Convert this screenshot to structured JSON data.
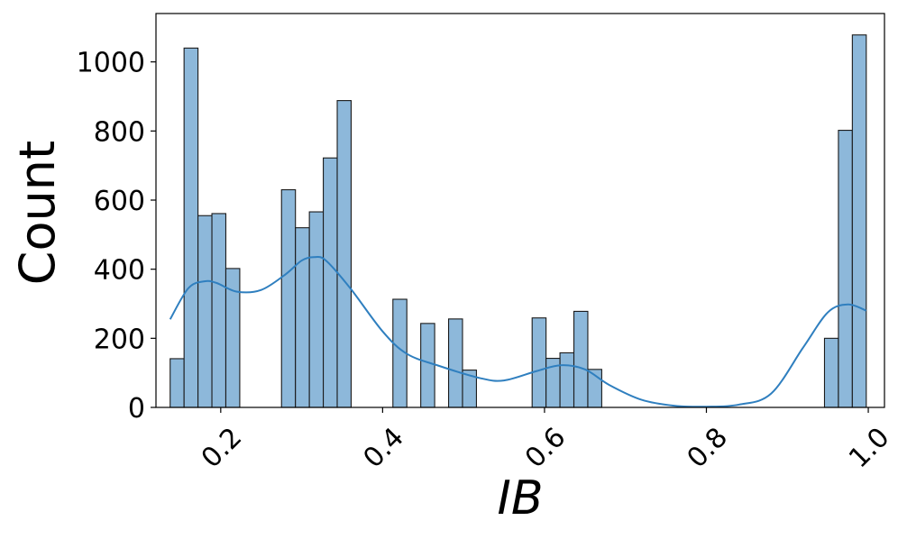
{
  "chart_data": {
    "type": "bar",
    "subtype": "histogram-with-kde",
    "title": "",
    "xlabel": "IB",
    "ylabel": "Count",
    "xlim": [
      0.12,
      1.02
    ],
    "ylim": [
      0,
      1140
    ],
    "x_ticks": [
      0.2,
      0.4,
      0.6,
      0.8,
      1.0
    ],
    "x_tick_labels": [
      "0.2",
      "0.4",
      "0.6",
      "0.8",
      "1.0"
    ],
    "y_ticks": [
      0,
      200,
      400,
      600,
      800,
      1000
    ],
    "y_tick_labels": [
      "0",
      "200",
      "400",
      "600",
      "800",
      "1000"
    ],
    "grid": false,
    "bar_color": "#8db8da",
    "bar_edge_color": "#1a1a1a",
    "kde_color": "#2f7fbf",
    "bin_width": 0.0172,
    "bars": [
      {
        "x0": 0.1375,
        "x1": 0.1547,
        "count": 141
      },
      {
        "x0": 0.1547,
        "x1": 0.1719,
        "count": 1040
      },
      {
        "x0": 0.1719,
        "x1": 0.1891,
        "count": 555
      },
      {
        "x0": 0.1891,
        "x1": 0.2063,
        "count": 561
      },
      {
        "x0": 0.2063,
        "x1": 0.2235,
        "count": 402
      },
      {
        "x0": 0.2751,
        "x1": 0.2923,
        "count": 630
      },
      {
        "x0": 0.2923,
        "x1": 0.3095,
        "count": 520
      },
      {
        "x0": 0.3095,
        "x1": 0.3267,
        "count": 566
      },
      {
        "x0": 0.3267,
        "x1": 0.3439,
        "count": 722
      },
      {
        "x0": 0.3439,
        "x1": 0.3611,
        "count": 888
      },
      {
        "x0": 0.4127,
        "x1": 0.4299,
        "count": 313
      },
      {
        "x0": 0.4471,
        "x1": 0.4643,
        "count": 243
      },
      {
        "x0": 0.4815,
        "x1": 0.4987,
        "count": 256
      },
      {
        "x0": 0.4987,
        "x1": 0.5159,
        "count": 108
      },
      {
        "x0": 0.5847,
        "x1": 0.6019,
        "count": 259
      },
      {
        "x0": 0.6019,
        "x1": 0.6191,
        "count": 142
      },
      {
        "x0": 0.6191,
        "x1": 0.6363,
        "count": 158
      },
      {
        "x0": 0.6363,
        "x1": 0.6535,
        "count": 278
      },
      {
        "x0": 0.6535,
        "x1": 0.6707,
        "count": 110
      },
      {
        "x0": 0.9459,
        "x1": 0.9631,
        "count": 200
      },
      {
        "x0": 0.9631,
        "x1": 0.9803,
        "count": 802
      },
      {
        "x0": 0.9803,
        "x1": 0.9975,
        "count": 1078
      }
    ],
    "kde": {
      "x": [
        0.1375,
        0.16,
        0.18,
        0.195,
        0.22,
        0.25,
        0.28,
        0.3,
        0.315,
        0.33,
        0.36,
        0.4,
        0.43,
        0.47,
        0.52,
        0.55,
        0.59,
        0.62,
        0.65,
        0.68,
        0.72,
        0.76,
        0.8,
        0.84,
        0.88,
        0.92,
        0.95,
        0.975,
        0.9975
      ],
      "y": [
        255,
        345,
        365,
        360,
        335,
        340,
        385,
        425,
        435,
        425,
        345,
        220,
        155,
        120,
        85,
        78,
        105,
        122,
        110,
        65,
        22,
        5,
        2,
        8,
        40,
        175,
        275,
        298,
        280
      ]
    }
  }
}
